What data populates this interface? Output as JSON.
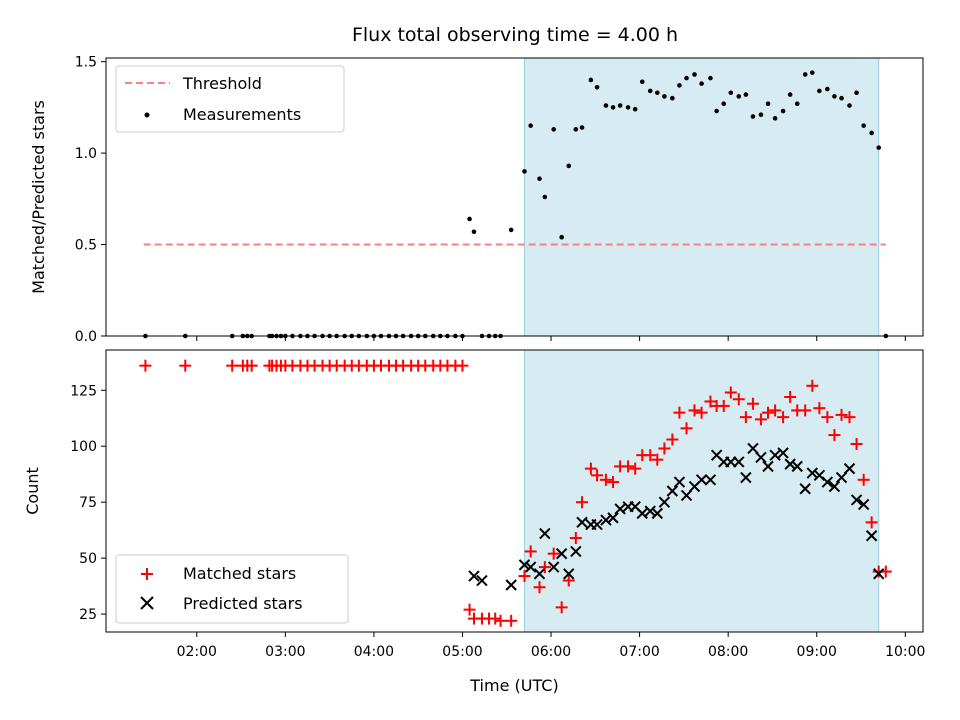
{
  "chart_data": [
    {
      "type": "scatter",
      "title": "Flux total observing time = 4.00 h",
      "xlabel": "",
      "ylabel": "Matched/Predicted stars",
      "xlim": [
        0.975,
        10.2
      ],
      "ylim": [
        0,
        1.52
      ],
      "yticks": [
        "0.0",
        "0.5",
        "1.0",
        "1.5"
      ],
      "yticks_values": [
        0,
        0.5,
        1.0,
        1.5
      ],
      "xticks_values": [
        2,
        3,
        4,
        5,
        6,
        7,
        8,
        9,
        10
      ],
      "shaded_range": [
        5.7,
        9.7
      ],
      "grid": false,
      "legend": {
        "position": "top-left",
        "entries": [
          "Threshold",
          "Measurements"
        ]
      },
      "series": [
        {
          "name": "Threshold",
          "kind": "dashed-line",
          "color": "#ff7f7f",
          "x": [
            1.4,
            9.78
          ],
          "y": [
            0.5,
            0.5
          ]
        },
        {
          "name": "Measurements",
          "kind": "points",
          "color": "#000000",
          "x": [
            1.42,
            1.87,
            2.4,
            2.52,
            2.57,
            2.62,
            2.82,
            2.85,
            2.9,
            2.95,
            3.0,
            3.08,
            3.17,
            3.25,
            3.33,
            3.42,
            3.5,
            3.58,
            3.67,
            3.75,
            3.83,
            3.92,
            4.0,
            4.08,
            4.17,
            4.25,
            4.33,
            4.42,
            4.5,
            4.58,
            4.67,
            4.75,
            4.83,
            4.92,
            5.0,
            5.08,
            5.13,
            5.22,
            5.3,
            5.37,
            5.43,
            5.55,
            5.7,
            5.77,
            5.87,
            5.93,
            6.03,
            6.12,
            6.2,
            6.28,
            6.35,
            6.45,
            6.52,
            6.62,
            6.7,
            6.78,
            6.87,
            6.95,
            7.03,
            7.12,
            7.2,
            7.28,
            7.37,
            7.45,
            7.53,
            7.62,
            7.7,
            7.8,
            7.87,
            7.95,
            8.03,
            8.12,
            8.2,
            8.28,
            8.37,
            8.45,
            8.53,
            8.62,
            8.7,
            8.78,
            8.87,
            8.95,
            9.03,
            9.12,
            9.2,
            9.28,
            9.37,
            9.45,
            9.53,
            9.62,
            9.7,
            9.78
          ],
          "y": [
            0,
            0,
            0,
            0,
            0,
            0,
            0,
            0,
            0,
            0,
            0,
            0,
            0,
            0,
            0,
            0,
            0,
            0,
            0,
            0,
            0,
            0,
            0,
            0,
            0,
            0,
            0,
            0,
            0,
            0,
            0,
            0,
            0,
            0,
            0,
            0.64,
            0.57,
            0,
            0,
            0,
            0,
            0.58,
            0.9,
            1.15,
            0.86,
            0.76,
            1.13,
            0.54,
            0.93,
            1.13,
            1.14,
            1.4,
            1.36,
            1.26,
            1.25,
            1.26,
            1.25,
            1.24,
            1.39,
            1.34,
            1.33,
            1.31,
            1.3,
            1.37,
            1.41,
            1.43,
            1.38,
            1.41,
            1.23,
            1.27,
            1.33,
            1.31,
            1.32,
            1.2,
            1.21,
            1.27,
            1.19,
            1.23,
            1.32,
            1.27,
            1.43,
            1.44,
            1.34,
            1.35,
            1.31,
            1.3,
            1.26,
            1.33,
            1.15,
            1.11,
            1.03,
            0
          ]
        }
      ]
    },
    {
      "type": "scatter",
      "title": "",
      "xlabel": "Time (UTC)",
      "ylabel": "Count",
      "xlim": [
        0.975,
        10.2
      ],
      "ylim": [
        17,
        143
      ],
      "yticks": [
        "25",
        "50",
        "75",
        "100",
        "125"
      ],
      "yticks_values": [
        25,
        50,
        75,
        100,
        125
      ],
      "xticks": [
        "02:00",
        "03:00",
        "04:00",
        "05:00",
        "06:00",
        "07:00",
        "08:00",
        "09:00",
        "10:00"
      ],
      "xticks_values": [
        2,
        3,
        4,
        5,
        6,
        7,
        8,
        9,
        10
      ],
      "shaded_range": [
        5.7,
        9.7
      ],
      "grid": false,
      "legend": {
        "position": "bottom-left",
        "entries": [
          "Matched stars",
          "Predicted stars"
        ]
      },
      "series": [
        {
          "name": "Matched stars",
          "marker": "+",
          "color": "#ff0000",
          "x": [
            1.42,
            1.87,
            2.4,
            2.52,
            2.57,
            2.62,
            2.82,
            2.85,
            2.9,
            2.95,
            3.0,
            3.08,
            3.17,
            3.25,
            3.33,
            3.42,
            3.5,
            3.58,
            3.67,
            3.75,
            3.83,
            3.92,
            4.0,
            4.08,
            4.17,
            4.25,
            4.33,
            4.42,
            4.5,
            4.58,
            4.67,
            4.75,
            4.83,
            4.92,
            5.0,
            5.08,
            5.13,
            5.22,
            5.3,
            5.37,
            5.43,
            5.55,
            5.7,
            5.77,
            5.87,
            5.93,
            6.03,
            6.12,
            6.2,
            6.28,
            6.35,
            6.45,
            6.52,
            6.62,
            6.7,
            6.78,
            6.87,
            6.95,
            7.03,
            7.12,
            7.2,
            7.28,
            7.37,
            7.45,
            7.53,
            7.62,
            7.7,
            7.8,
            7.87,
            7.95,
            8.03,
            8.12,
            8.2,
            8.28,
            8.37,
            8.45,
            8.53,
            8.62,
            8.7,
            8.78,
            8.87,
            8.95,
            9.03,
            9.12,
            9.2,
            9.28,
            9.37,
            9.45,
            9.53,
            9.62,
            9.7,
            9.78
          ],
          "y": [
            136,
            136,
            136,
            136,
            136,
            136,
            136,
            136,
            136,
            136,
            136,
            136,
            136,
            136,
            136,
            136,
            136,
            136,
            136,
            136,
            136,
            136,
            136,
            136,
            136,
            136,
            136,
            136,
            136,
            136,
            136,
            136,
            136,
            136,
            136,
            27,
            23,
            23,
            23,
            23,
            22,
            22,
            42,
            53,
            37,
            46,
            52,
            28,
            40,
            59,
            75,
            90,
            87,
            85,
            84,
            91,
            91,
            90,
            96,
            96,
            94,
            99,
            103,
            115,
            108,
            116,
            115,
            120,
            118,
            118,
            124,
            121,
            113,
            119,
            112,
            115,
            116,
            113,
            122,
            116,
            116,
            127,
            117,
            113,
            105,
            114,
            113,
            101,
            85,
            66,
            44,
            44
          ]
        },
        {
          "name": "Predicted stars",
          "marker": "x",
          "color": "#000000",
          "x": [
            5.13,
            5.22,
            5.55,
            5.7,
            5.77,
            5.87,
            5.93,
            6.03,
            6.12,
            6.2,
            6.28,
            6.35,
            6.45,
            6.52,
            6.62,
            6.7,
            6.78,
            6.87,
            6.95,
            7.03,
            7.12,
            7.2,
            7.28,
            7.37,
            7.45,
            7.53,
            7.62,
            7.7,
            7.8,
            7.87,
            7.95,
            8.03,
            8.12,
            8.2,
            8.28,
            8.37,
            8.45,
            8.53,
            8.62,
            8.7,
            8.78,
            8.87,
            8.95,
            9.03,
            9.12,
            9.2,
            9.28,
            9.37,
            9.45,
            9.53,
            9.62,
            9.7
          ],
          "y": [
            42,
            40,
            38,
            47,
            46,
            43,
            61,
            46,
            52,
            43,
            53,
            66,
            65,
            65,
            67,
            68,
            72,
            73,
            73,
            70,
            71,
            70,
            75,
            80,
            84,
            78,
            82,
            85,
            85,
            96,
            93,
            93,
            93,
            86,
            99,
            95,
            91,
            96,
            97,
            92,
            91,
            81,
            88,
            87,
            84,
            82,
            86,
            90,
            76,
            74,
            60,
            43
          ]
        }
      ]
    }
  ]
}
